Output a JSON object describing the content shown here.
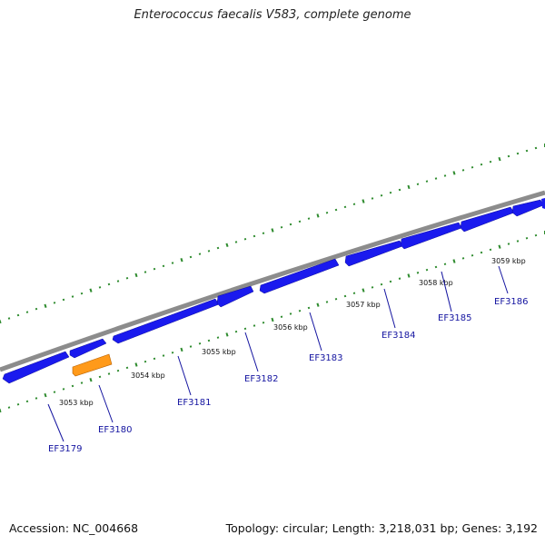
{
  "title": "Enterococcus faecalis V583, complete genome",
  "footer": {
    "accession": "Accession: NC_004668",
    "summary": "Topology: circular; Length: 3,218,031 bp; Genes: 3,192"
  },
  "colors": {
    "backbone": "#8c8c8c",
    "gene_plus": "#1a1aee",
    "gene_highlight": "#ff9a1a",
    "tick": "#2e8b2e",
    "label": "#1414a0"
  },
  "kbp_labels": [
    "3053 kbp",
    "3054 kbp",
    "3055 kbp",
    "3056 kbp",
    "3057 kbp",
    "3058 kbp",
    "3059 kbp"
  ],
  "genes": [
    {
      "name": "EF3179",
      "strand": "+"
    },
    {
      "name": "EF3180",
      "strand": "-"
    },
    {
      "name": "EF3181",
      "strand": "+"
    },
    {
      "name": "EF3182",
      "strand": "+"
    },
    {
      "name": "EF3183",
      "strand": "+"
    },
    {
      "name": "EF3184",
      "strand": "+"
    },
    {
      "name": "EF3185",
      "strand": "+"
    },
    {
      "name": "EF3186",
      "strand": "+"
    }
  ]
}
